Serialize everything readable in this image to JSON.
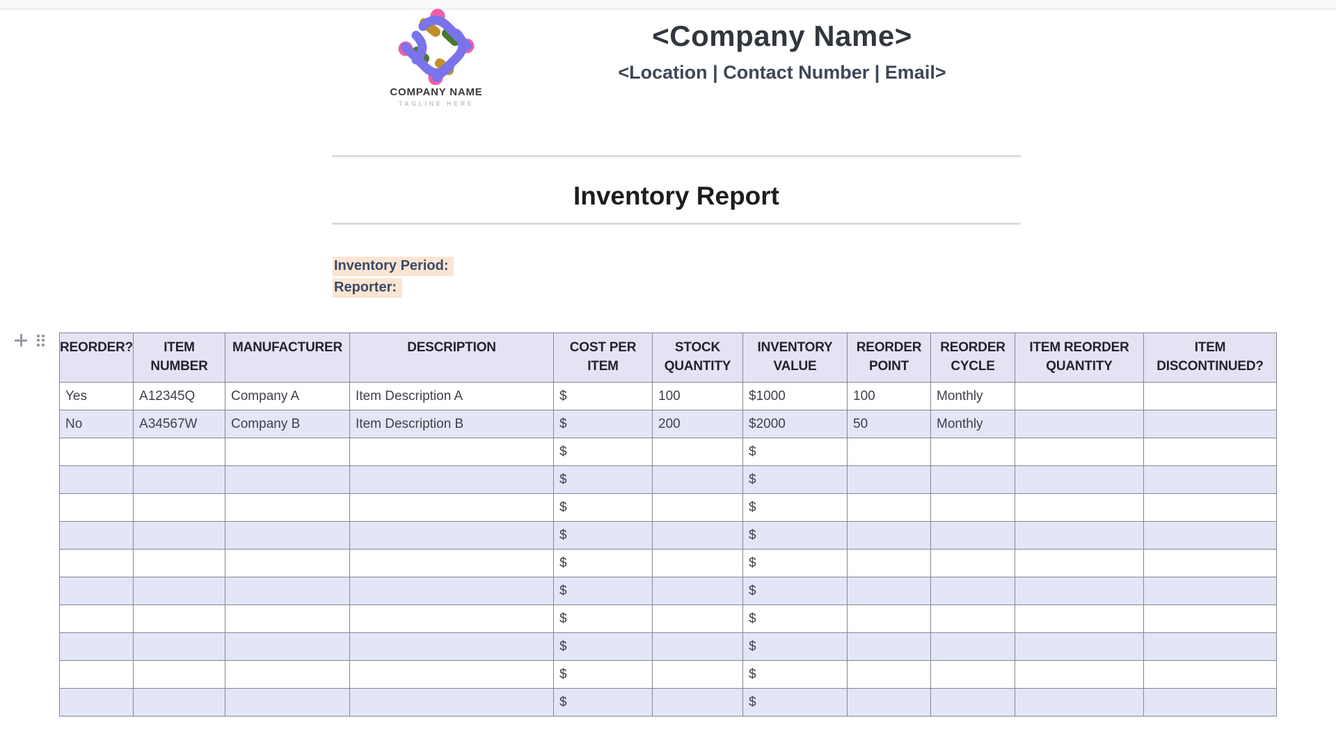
{
  "brand": {
    "logo_label": "COMPANY NAME",
    "logo_tagline": "TAGLINE HERE",
    "logo_colors": {
      "purple": "#7b73ec",
      "pink": "#ee5fa7",
      "green": "#49792f",
      "gold": "#c09028"
    }
  },
  "header": {
    "company_name": "<Company Name>",
    "contact_line": "<Location | Contact Number | Email>"
  },
  "document": {
    "title": "Inventory Report",
    "highlight_color": "#fbe5d2",
    "fields": [
      {
        "label": "Inventory Period:"
      },
      {
        "label": "Reporter:"
      }
    ]
  },
  "table": {
    "header_bg": "#e3e3f3",
    "alt_row_bg": "#e3e6f6",
    "border_color": "#858595",
    "columns": [
      "REORDER?",
      "ITEM\nNUMBER",
      "MANUFACTURER",
      "DESCRIPTION",
      "COST PER\nITEM",
      "STOCK\nQUANTITY",
      "INVENTORY\nVALUE",
      "REORDER\nPOINT",
      "REORDER\nCYCLE",
      "ITEM REORDER\nQUANTITY",
      "ITEM\nDISCONTINUED?"
    ],
    "rows": [
      [
        "Yes",
        "A12345Q",
        "Company A",
        "Item Description A",
        "$",
        "100",
        "$1000",
        "100",
        "Monthly",
        "",
        ""
      ],
      [
        "No",
        "A34567W",
        "Company B",
        "Item Description B",
        "$",
        "200",
        "$2000",
        "50",
        "Monthly",
        "",
        ""
      ],
      [
        "",
        "",
        "",
        "",
        "$",
        "",
        "$",
        "",
        "",
        "",
        ""
      ],
      [
        "",
        "",
        "",
        "",
        "$",
        "",
        "$",
        "",
        "",
        "",
        ""
      ],
      [
        "",
        "",
        "",
        "",
        "$",
        "",
        "$",
        "",
        "",
        "",
        ""
      ],
      [
        "",
        "",
        "",
        "",
        "$",
        "",
        "$",
        "",
        "",
        "",
        ""
      ],
      [
        "",
        "",
        "",
        "",
        "$",
        "",
        "$",
        "",
        "",
        "",
        ""
      ],
      [
        "",
        "",
        "",
        "",
        "$",
        "",
        "$",
        "",
        "",
        "",
        ""
      ],
      [
        "",
        "",
        "",
        "",
        "$",
        "",
        "$",
        "",
        "",
        "",
        ""
      ],
      [
        "",
        "",
        "",
        "",
        "$",
        "",
        "$",
        "",
        "",
        "",
        ""
      ],
      [
        "",
        "",
        "",
        "",
        "$",
        "",
        "$",
        "",
        "",
        "",
        ""
      ],
      [
        "",
        "",
        "",
        "",
        "$",
        "",
        "$",
        "",
        "",
        "",
        ""
      ]
    ]
  }
}
